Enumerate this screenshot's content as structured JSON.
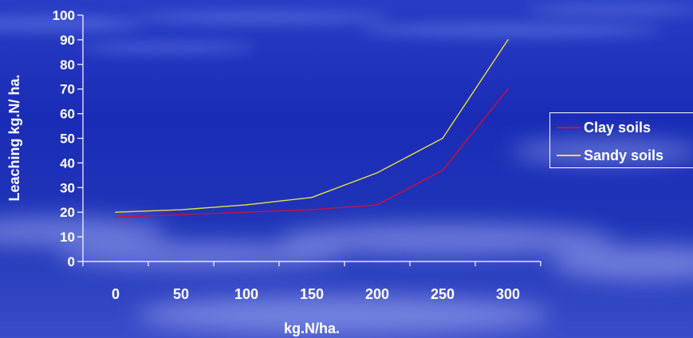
{
  "chart_data": {
    "type": "line",
    "title": "",
    "xlabel": "kg.N/ha.",
    "ylabel": "Leaching kg.N/ ha.",
    "categories": [
      "0",
      "50",
      "100",
      "150",
      "200",
      "250",
      "300"
    ],
    "x": [
      0,
      50,
      100,
      150,
      200,
      250,
      300
    ],
    "ylim": [
      0,
      100
    ],
    "yticks": [
      0,
      10,
      20,
      30,
      40,
      50,
      60,
      70,
      80,
      90,
      100
    ],
    "grid": false,
    "legend_position": "right",
    "series": [
      {
        "name": "Clay soils",
        "values": [
          18,
          19,
          20,
          21,
          23,
          37,
          70
        ],
        "color": "#cc1040"
      },
      {
        "name": "Sandy soils",
        "values": [
          20,
          21,
          23,
          26,
          36,
          50,
          90
        ],
        "color": "#e8e040"
      }
    ]
  },
  "colors": {
    "background": "#1a2bb8",
    "axis": "#ffffff",
    "text": "#ffffff"
  }
}
